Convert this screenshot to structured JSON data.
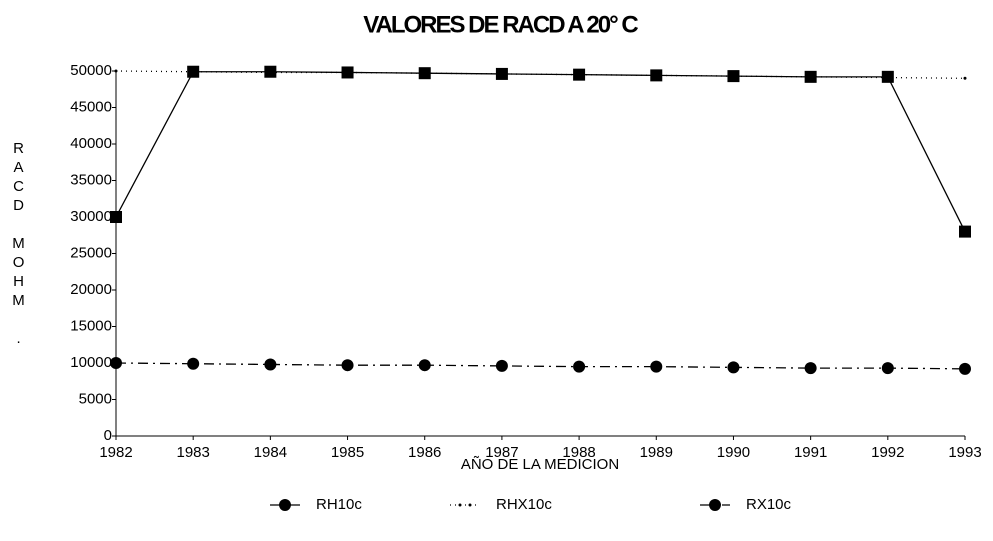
{
  "chart_data": {
    "type": "line",
    "title": "VALORES DE RACD A 20° C",
    "xlabel": "AÑO DE LA MEDICION",
    "ylabel": "RACD MOHM .",
    "categories": [
      "1982",
      "1983",
      "1984",
      "1985",
      "1986",
      "1987",
      "1988",
      "1989",
      "1990",
      "1991",
      "1992",
      "1993"
    ],
    "ylim": [
      0,
      50000
    ],
    "yticks": [
      0,
      5000,
      10000,
      15000,
      20000,
      25000,
      30000,
      35000,
      40000,
      45000,
      50000
    ],
    "series": [
      {
        "name": "RH10c",
        "color": "#000000",
        "style": "solid",
        "marker": "square",
        "values": [
          30000,
          49900,
          49900,
          49800,
          49700,
          49600,
          49500,
          49400,
          49300,
          49200,
          49200,
          28000
        ]
      },
      {
        "name": "RHX10c",
        "color": "#000000",
        "style": "dotted",
        "marker": "none",
        "values": [
          50000,
          49900,
          49800,
          49800,
          49700,
          49600,
          49500,
          49400,
          49300,
          49200,
          49100,
          49000
        ]
      },
      {
        "name": "RX10c",
        "color": "#000000",
        "style": "dashdot",
        "marker": "circle",
        "values": [
          10000,
          9900,
          9800,
          9700,
          9700,
          9600,
          9500,
          9500,
          9400,
          9300,
          9300,
          9200
        ]
      }
    ]
  }
}
